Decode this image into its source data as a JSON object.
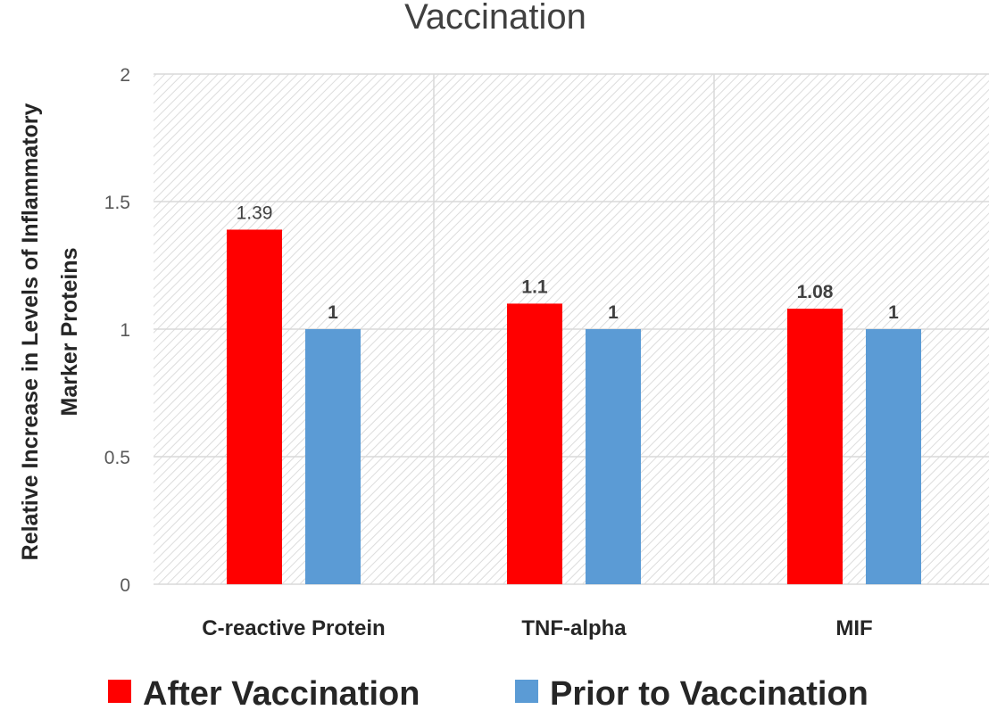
{
  "chart_data": {
    "type": "bar",
    "title": "Vaccination",
    "xlabel": "",
    "ylabel": "Relative Increase in Levels of Inflammatory Marker Proteins",
    "ylabel_lines": [
      "Relative Increase in Levels of Inflammatory",
      "Marker Proteins"
    ],
    "categories": [
      "C-reactive Protein",
      "TNF-alpha",
      "MIF"
    ],
    "series": [
      {
        "name": "After Vaccination",
        "color": "#ff0000",
        "values": [
          1.39,
          1.1,
          1.08
        ],
        "labels": [
          "1.39",
          "1.1",
          "1.08"
        ]
      },
      {
        "name": "Prior to Vaccination",
        "color": "#5b9bd5",
        "values": [
          1,
          1,
          1
        ],
        "labels": [
          "1",
          "1",
          "1"
        ]
      }
    ],
    "ylim": [
      0,
      2
    ],
    "yticks": [
      {
        "value": 0,
        "label": "0"
      },
      {
        "value": 0.5,
        "label": "0.5"
      },
      {
        "value": 1,
        "label": "1"
      },
      {
        "value": 1.5,
        "label": "1.5"
      },
      {
        "value": 2,
        "label": "2"
      }
    ],
    "grid": true,
    "plot_background": "hatched-light-gray",
    "legend_position": "bottom"
  }
}
